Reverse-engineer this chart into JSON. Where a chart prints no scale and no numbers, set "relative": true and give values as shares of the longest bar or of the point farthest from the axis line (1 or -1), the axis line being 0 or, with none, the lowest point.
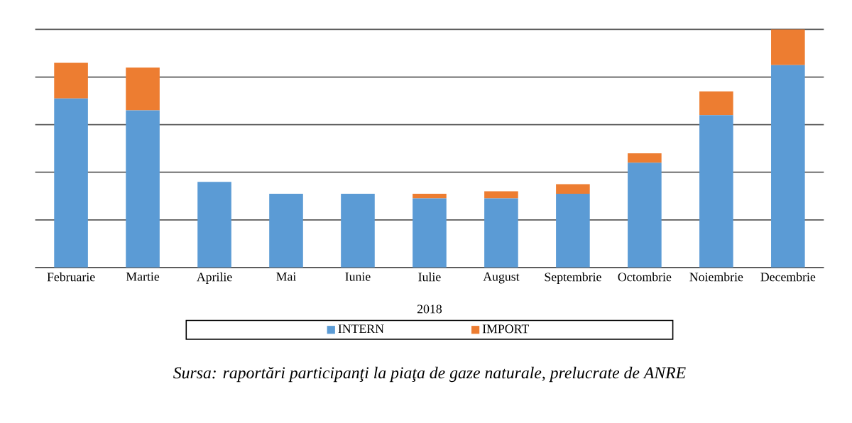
{
  "chart_data": {
    "type": "bar",
    "stacked": true,
    "relative": true,
    "xlabel": "2018",
    "categories": [
      "Februarie",
      "Martie",
      "Aprilie",
      "Mai",
      "Iunie",
      "Iulie",
      "August",
      "Septembrie",
      "Octombrie",
      "Noiembrie",
      "Decembrie"
    ],
    "series": [
      {
        "name": "INTERN",
        "color": "#5b9bd5",
        "values": [
          0.71,
          0.66,
          0.36,
          0.31,
          0.31,
          0.29,
          0.29,
          0.31,
          0.44,
          0.64,
          0.85
        ]
      },
      {
        "name": "IMPORT",
        "color": "#ed7d31",
        "values": [
          0.15,
          0.18,
          0,
          0,
          0,
          0.02,
          0.03,
          0.04,
          0.04,
          0.1,
          0.15
        ]
      }
    ],
    "grid": "y",
    "legend": "bottom",
    "annotations": [
      "Sursa: raportări participanţi la piaţa de gaze naturale, prelucrate de ANRE"
    ]
  }
}
